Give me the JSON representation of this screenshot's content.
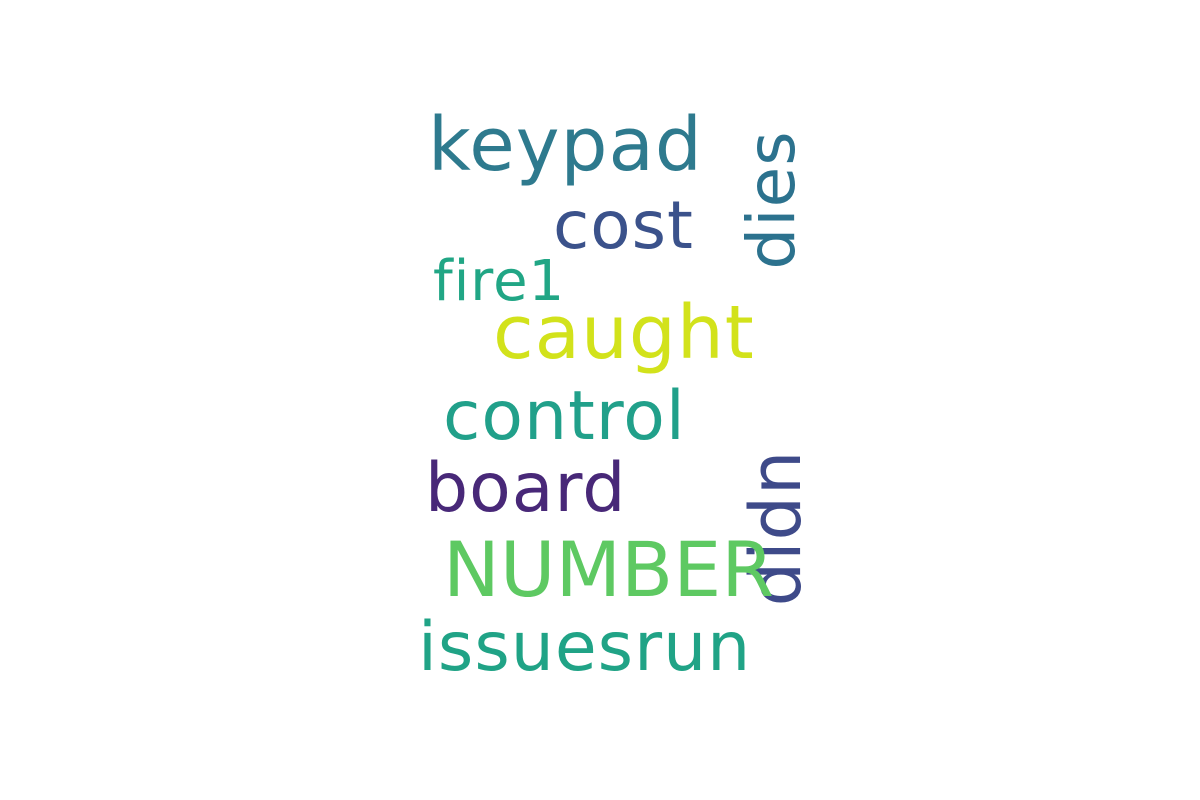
{
  "wordcloud": {
    "words": {
      "keypad": {
        "text": "keypad",
        "color": "#2e7a8e"
      },
      "cost": {
        "text": "cost",
        "color": "#3b528b"
      },
      "dies": {
        "text": "dies",
        "color": "#2c728e"
      },
      "fire1": {
        "text": "fire1",
        "color": "#21a685"
      },
      "caught": {
        "text": "caught",
        "color": "#d2e21b"
      },
      "control": {
        "text": "control",
        "color": "#21a08a"
      },
      "board": {
        "text": "board",
        "color": "#482878"
      },
      "didn": {
        "text": "didn",
        "color": "#3e4a89"
      },
      "number": {
        "text": "NUMBER",
        "color": "#5ec962"
      },
      "issuesrun": {
        "text": "issuesrun",
        "color": "#20a386"
      }
    }
  }
}
